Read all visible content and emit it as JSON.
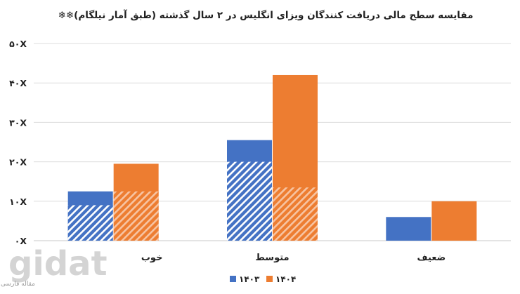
{
  "chart_data": {
    "type": "bar",
    "title": "مقایسه سطح مالی دریافت کنندگان ویزای انگلیس در ۲ سال گذشته (طبق آمار نیلگام)❄❄",
    "categories": [
      "خوب",
      "متوسط",
      "ضعیف"
    ],
    "series": [
      {
        "name": "۱۴۰۳",
        "color": "#4472c4",
        "values": [
          12.5,
          25.5,
          6
        ],
        "hatched_values": [
          9,
          20,
          0
        ]
      },
      {
        "name": "۱۴۰۴",
        "color": "#ed7d31",
        "values": [
          19.5,
          42,
          10
        ],
        "hatched_values": [
          12.5,
          13.5,
          0
        ]
      }
    ],
    "ylim": [
      0,
      50
    ],
    "yticks": [
      {
        "value": 0,
        "label": "۰X"
      },
      {
        "value": 10,
        "label": "۱۰X"
      },
      {
        "value": 20,
        "label": "۲۰X"
      },
      {
        "value": 30,
        "label": "۳۰X"
      },
      {
        "value": 40,
        "label": "۴۰X"
      },
      {
        "value": 50,
        "label": "۵۰X"
      }
    ],
    "grid": true,
    "legend_position": "bottom"
  },
  "watermark": {
    "name": "gidat",
    "subtitle": "مقاله فارسی ؛ فروشگاه دیجیتال"
  }
}
